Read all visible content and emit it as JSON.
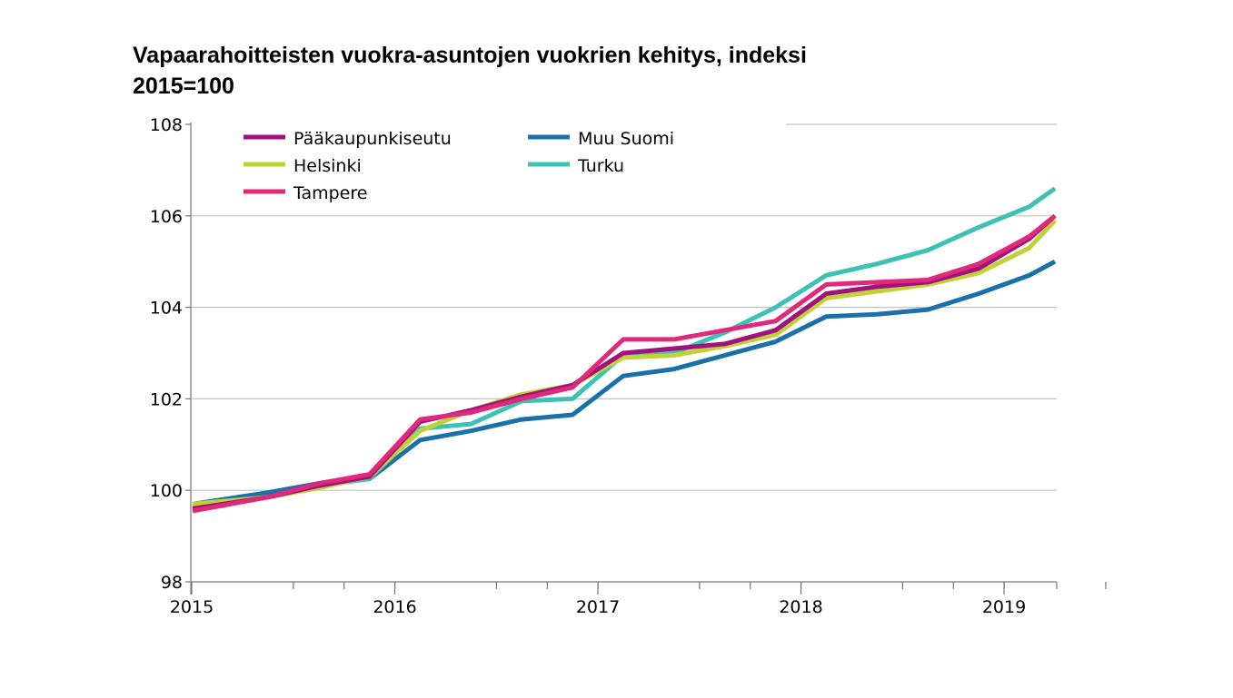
{
  "chart_data": {
    "type": "line",
    "title_lines": [
      "Vapaarahoitteisten vuokra-asuntojen vuokrien kehitys, indeksi",
      "2015=100"
    ],
    "xlabel": "",
    "ylabel": "",
    "ylim": [
      98,
      108
    ],
    "yticks": [
      {
        "value": 98,
        "label": "98"
      },
      {
        "value": 100,
        "label": "100"
      },
      {
        "value": 102,
        "label": "102"
      },
      {
        "value": 104,
        "label": "104"
      },
      {
        "value": 106,
        "label": "106"
      },
      {
        "value": 108,
        "label": "108"
      }
    ],
    "xlim": [
      2015,
      2019.25
    ],
    "xticks": [
      {
        "value": 2015,
        "label": "2015"
      },
      {
        "value": 2016,
        "label": "2016"
      },
      {
        "value": 2017,
        "label": "2017"
      },
      {
        "value": 2018,
        "label": "2018"
      },
      {
        "value": 2019,
        "label": "2019"
      }
    ],
    "x": [
      "2015Q1",
      "2015Q2",
      "2015Q3",
      "2015Q4",
      "2016Q1",
      "2016Q2",
      "2016Q3",
      "2016Q4",
      "2017Q1",
      "2017Q2",
      "2017Q3",
      "2017Q4",
      "2018Q1",
      "2018Q2",
      "2018Q3",
      "2018Q4",
      "2019Q1",
      "2019Q2"
    ],
    "grid": true,
    "legend_position": "top-left",
    "series": [
      {
        "name": "Pääkaupunkiseutu",
        "color": "#a0137c",
        "values": [
          99.6,
          99.85,
          100.1,
          100.3,
          101.5,
          101.75,
          102.05,
          102.3,
          103.0,
          103.1,
          103.2,
          103.5,
          104.3,
          104.45,
          104.55,
          104.85,
          105.5,
          106.0
        ]
      },
      {
        "name": "Muu Suomi",
        "color": "#1a70a8",
        "values": [
          99.7,
          99.95,
          100.15,
          100.25,
          101.1,
          101.3,
          101.55,
          101.65,
          102.5,
          102.65,
          102.95,
          103.25,
          103.8,
          103.85,
          103.95,
          104.3,
          104.7,
          105.0
        ]
      },
      {
        "name": "Helsinki",
        "color": "#c0d235",
        "values": [
          99.7,
          99.85,
          100.05,
          100.3,
          101.3,
          101.75,
          102.1,
          102.3,
          102.9,
          102.95,
          103.15,
          103.4,
          104.2,
          104.35,
          104.5,
          104.75,
          105.3,
          105.9
        ]
      },
      {
        "name": "Turku",
        "color": "#3ec1b5",
        "values": [
          99.65,
          99.85,
          100.1,
          100.25,
          101.35,
          101.45,
          101.95,
          102.0,
          102.95,
          103.0,
          103.45,
          104.0,
          104.7,
          104.95,
          105.25,
          105.75,
          106.2,
          106.6
        ]
      },
      {
        "name": "Tampere",
        "color": "#e0297a",
        "values": [
          99.55,
          99.85,
          100.15,
          100.35,
          101.55,
          101.7,
          102.0,
          102.25,
          103.3,
          103.3,
          103.5,
          103.7,
          104.5,
          104.55,
          104.6,
          104.95,
          105.55,
          106.0
        ]
      }
    ]
  }
}
